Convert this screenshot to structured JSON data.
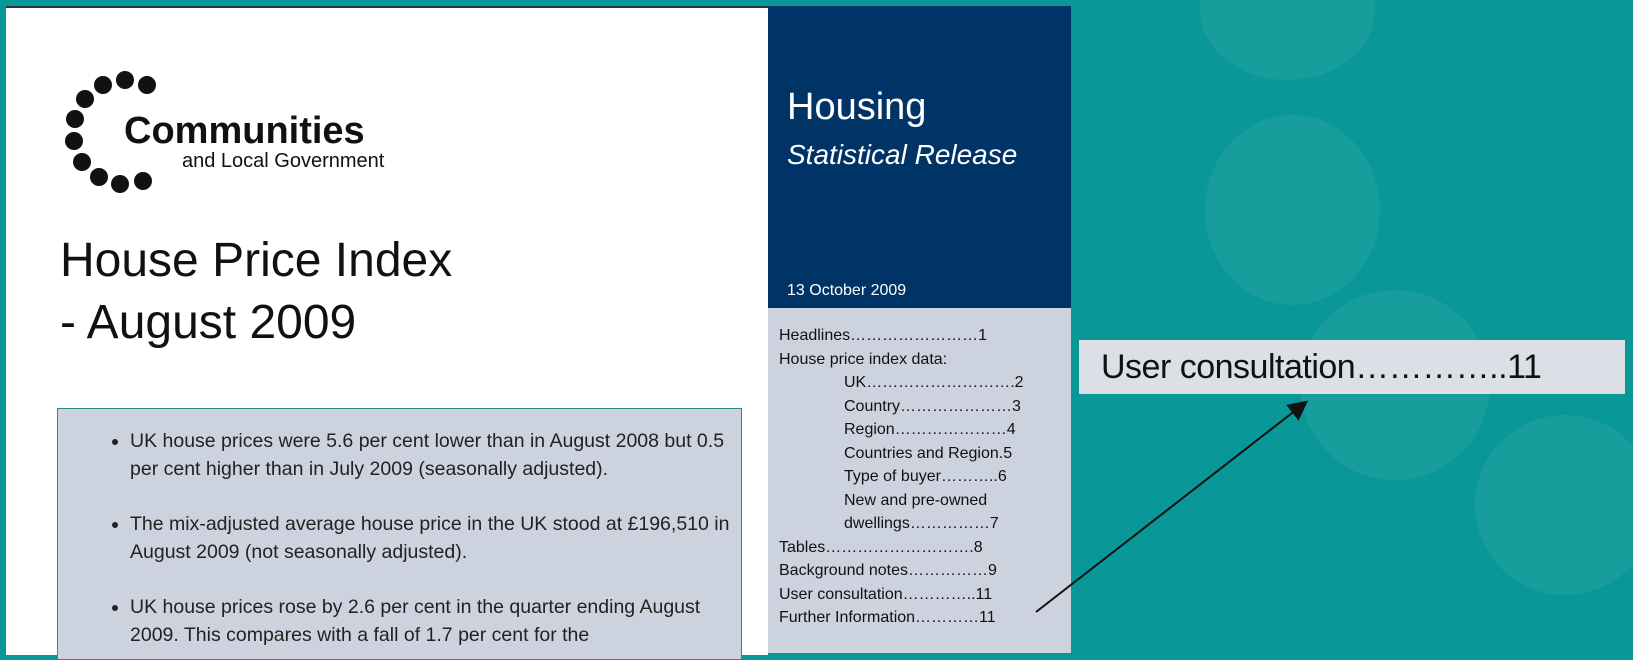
{
  "logo": {
    "name": "Communities",
    "subname": "and Local Government"
  },
  "title": {
    "line1": "House Price Index",
    "line2": "- August 2009"
  },
  "bullets": [
    "UK house prices were 5.6 per cent lower than in August 2008 but 0.5 per cent higher than in July 2009 (seasonally adjusted).",
    "The mix-adjusted average house price in the UK stood at £196,510 in August 2009 (not seasonally adjusted).",
    "UK house prices rose by 2.6 per cent in the quarter ending August 2009. This compares with a fall of 1.7 per cent for the"
  ],
  "banner": {
    "heading": "Housing",
    "subheading": "Statistical Release",
    "date": "13 October 2009"
  },
  "contents_top": [
    "Headlines……………………1",
    "House price index data:"
  ],
  "contents_sub": [
    "UK……………………….2",
    "Country…………………3",
    "Region…………………4",
    "Countries and Region.5",
    "Type of buyer………..6",
    "New and pre-owned dwellings……………7"
  ],
  "contents_bottom": [
    "Tables……………………….8",
    "Background notes……………9",
    "User consultation…………..11",
    "Further Information…………11"
  ],
  "zoom": {
    "text": "User consultation…………..11"
  }
}
